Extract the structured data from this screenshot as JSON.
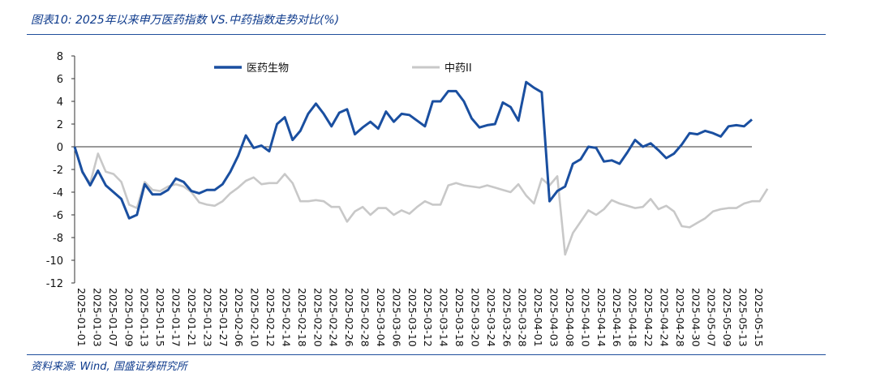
{
  "header": {
    "title": "图表10:  2025年以来申万医药指数 VS.中药指数走势对比(%)"
  },
  "footer": {
    "source": "资料来源:  Wind, 国盛证券研究所"
  },
  "colors": {
    "series_blue": "#1a4fa0",
    "series_gray": "#c8c8c8",
    "rule": "#1f4e9c",
    "text": "#0d3a8c"
  },
  "chart_data": {
    "type": "line",
    "title": "2025年以来申万医药指数 VS.中药指数走势对比(%)",
    "xlabel": "",
    "ylabel": "",
    "ylim": [
      -12,
      8
    ],
    "yticks": [
      8,
      6,
      4,
      2,
      0,
      -2,
      -4,
      -6,
      -8,
      -10,
      -12
    ],
    "legend_position": "top",
    "x_tick_labels": [
      "2025-01-01",
      "2025-01-03",
      "2025-01-07",
      "2025-01-09",
      "2025-01-13",
      "2025-01-15",
      "2025-01-17",
      "2025-01-21",
      "2025-01-23",
      "2025-01-27",
      "2025-02-06",
      "2025-02-10",
      "2025-02-12",
      "2025-02-14",
      "2025-02-18",
      "2025-02-20",
      "2025-02-24",
      "2025-02-26",
      "2025-02-28",
      "2025-03-04",
      "2025-03-06",
      "2025-03-10",
      "2025-03-12",
      "2025-03-14",
      "2025-03-18",
      "2025-03-20",
      "2025-03-24",
      "2025-03-26",
      "2025-03-28",
      "2025-04-01",
      "2025-04-03",
      "2025-04-08",
      "2025-04-10",
      "2025-04-14",
      "2025-04-16",
      "2025-04-18",
      "2025-04-22",
      "2025-04-24",
      "2025-04-28",
      "2025-04-30",
      "2025-05-07",
      "2025-05-09",
      "2025-05-13",
      "2025-05-15"
    ],
    "series": [
      {
        "name": "医药生物",
        "color": "#1a4fa0",
        "values": [
          0,
          -2.2,
          -3.4,
          -2.1,
          -3.4,
          -4.0,
          -4.6,
          -6.3,
          -6.0,
          -3.3,
          -4.2,
          -4.2,
          -3.8,
          -2.8,
          -3.1,
          -3.9,
          -4.1,
          -3.8,
          -3.8,
          -3.3,
          -2.2,
          -0.8,
          1.0,
          -0.1,
          0.1,
          -0.4,
          2.0,
          2.6,
          0.6,
          1.4,
          2.9,
          3.8,
          2.9,
          1.8,
          3.0,
          3.3,
          1.1,
          1.7,
          2.2,
          1.6,
          3.1,
          2.2,
          2.9,
          2.8,
          2.3,
          1.8,
          4.0,
          4.0,
          4.9,
          4.9,
          4.0,
          2.5,
          1.7,
          1.9,
          2.0,
          3.9,
          3.5,
          2.3,
          5.7,
          5.2,
          4.8,
          -4.8,
          -3.9,
          -3.5,
          -1.5,
          -1.1,
          0.0,
          -0.1,
          -1.3,
          -1.2,
          -1.5,
          -0.5,
          0.6,
          0.0,
          0.3,
          -0.3,
          -1.0,
          -0.6,
          0.2,
          1.2,
          1.1,
          1.4,
          1.2,
          0.9,
          1.8,
          1.9,
          1.8,
          2.4
        ]
      },
      {
        "name": "中药II",
        "color": "#c8c8c8",
        "values": [
          0,
          -2.3,
          -3.2,
          -0.6,
          -2.2,
          -2.4,
          -3.1,
          -5.1,
          -5.4,
          -3.1,
          -3.8,
          -3.9,
          -3.5,
          -3.3,
          -3.5,
          -4.0,
          -4.9,
          -5.1,
          -5.2,
          -4.8,
          -4.1,
          -3.6,
          -3.0,
          -2.7,
          -3.3,
          -3.2,
          -3.2,
          -2.4,
          -3.2,
          -4.8,
          -4.8,
          -4.7,
          -4.8,
          -5.3,
          -5.3,
          -6.6,
          -5.7,
          -5.3,
          -6.0,
          -5.4,
          -5.4,
          -6.0,
          -5.6,
          -5.9,
          -5.3,
          -4.8,
          -5.1,
          -5.1,
          -3.4,
          -3.2,
          -3.4,
          -3.5,
          -3.6,
          -3.4,
          -3.6,
          -3.8,
          -4.0,
          -3.3,
          -4.3,
          -5.0,
          -2.8,
          -3.4,
          -2.6,
          -9.5,
          -7.6,
          -6.6,
          -5.6,
          -6.0,
          -5.5,
          -4.7,
          -5.0,
          -5.2,
          -5.4,
          -5.3,
          -4.6,
          -5.5,
          -5.2,
          -5.7,
          -7.0,
          -7.1,
          -6.7,
          -6.3,
          -5.7,
          -5.5,
          -5.4,
          -5.4,
          -5.0,
          -4.8,
          -4.8,
          -3.7
        ]
      }
    ]
  }
}
